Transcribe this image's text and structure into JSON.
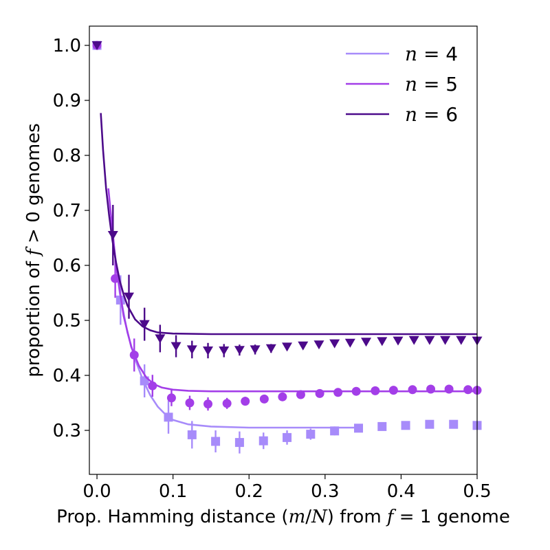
{
  "chart_data": {
    "type": "scatter",
    "xlabel": "Prop. Hamming distance (m/N) from f = 1 genome",
    "ylabel": "proportion of f > 0 genomes",
    "xlim": [
      -0.01,
      0.5
    ],
    "ylim": [
      0.22,
      1.035
    ],
    "xticks": [
      "0.0",
      "0.1",
      "0.2",
      "0.3",
      "0.4",
      "0.5"
    ],
    "yticks": [
      "0.3",
      "0.4",
      "0.5",
      "0.6",
      "0.7",
      "0.8",
      "0.9",
      "1.0"
    ],
    "legend_position": "top-right",
    "series": [
      {
        "name": "n = 4",
        "color": "#a78bfa",
        "marker": "square",
        "points": [
          [
            0,
            1.0
          ],
          [
            0.031,
            0.537
          ],
          [
            0.0625,
            0.39
          ],
          [
            0.094,
            0.324
          ],
          [
            0.125,
            0.292
          ],
          [
            0.156,
            0.28
          ],
          [
            0.1875,
            0.278
          ],
          [
            0.219,
            0.281
          ],
          [
            0.25,
            0.287
          ],
          [
            0.281,
            0.293
          ],
          [
            0.3125,
            0.299
          ],
          [
            0.344,
            0.304
          ],
          [
            0.375,
            0.307
          ],
          [
            0.406,
            0.309
          ],
          [
            0.4375,
            0.311
          ],
          [
            0.469,
            0.311
          ],
          [
            0.5,
            0.309
          ]
        ],
        "errors": [
          0,
          0.045,
          0.03,
          0.03,
          0.025,
          0.02,
          0.02,
          0.015,
          0.013,
          0.01,
          0.008,
          0.006,
          0.005,
          0.004,
          0.004,
          0.004,
          0.004
        ],
        "fit": [
          [
            0.02,
            0.66
          ],
          [
            0.03,
            0.55
          ],
          [
            0.04,
            0.478
          ],
          [
            0.05,
            0.43
          ],
          [
            0.06,
            0.393
          ],
          [
            0.07,
            0.364
          ],
          [
            0.08,
            0.343
          ],
          [
            0.09,
            0.329
          ],
          [
            0.1,
            0.319
          ],
          [
            0.12,
            0.311
          ],
          [
            0.15,
            0.307
          ],
          [
            0.2,
            0.305
          ],
          [
            0.25,
            0.305
          ],
          [
            0.344,
            0.305
          ]
        ]
      },
      {
        "name": "n = 5",
        "color": "#a33ee8",
        "marker": "circle",
        "points": [
          [
            0,
            1.0
          ],
          [
            0.024,
            0.576
          ],
          [
            0.049,
            0.437
          ],
          [
            0.073,
            0.381
          ],
          [
            0.098,
            0.359
          ],
          [
            0.122,
            0.35
          ],
          [
            0.146,
            0.348
          ],
          [
            0.171,
            0.349
          ],
          [
            0.195,
            0.353
          ],
          [
            0.22,
            0.357
          ],
          [
            0.244,
            0.361
          ],
          [
            0.268,
            0.365
          ],
          [
            0.293,
            0.367
          ],
          [
            0.317,
            0.369
          ],
          [
            0.341,
            0.371
          ],
          [
            0.366,
            0.372
          ],
          [
            0.39,
            0.373
          ],
          [
            0.415,
            0.374
          ],
          [
            0.439,
            0.375
          ],
          [
            0.463,
            0.375
          ],
          [
            0.488,
            0.374
          ],
          [
            0.5,
            0.373
          ]
        ],
        "errors": [
          0,
          0.035,
          0.03,
          0.02,
          0.015,
          0.013,
          0.012,
          0.01,
          0.008,
          0.007,
          0.006,
          0.005,
          0.004,
          0.003,
          0.003,
          0.003,
          0.003,
          0.003,
          0.003,
          0.003,
          0.003,
          0.003
        ],
        "fit": [
          [
            0.015,
            0.74
          ],
          [
            0.025,
            0.6
          ],
          [
            0.035,
            0.508
          ],
          [
            0.045,
            0.452
          ],
          [
            0.055,
            0.418
          ],
          [
            0.065,
            0.396
          ],
          [
            0.075,
            0.384
          ],
          [
            0.085,
            0.378
          ],
          [
            0.1,
            0.374
          ],
          [
            0.12,
            0.372
          ],
          [
            0.15,
            0.371
          ],
          [
            0.2,
            0.371
          ],
          [
            0.3,
            0.371
          ],
          [
            0.4,
            0.371
          ],
          [
            0.5,
            0.371
          ]
        ]
      },
      {
        "name": "n = 6",
        "color": "#4c0a8a",
        "marker": "triangle-down",
        "points": [
          [
            0,
            1.0
          ],
          [
            0.021,
            0.655
          ],
          [
            0.042,
            0.543
          ],
          [
            0.0625,
            0.493
          ],
          [
            0.083,
            0.467
          ],
          [
            0.104,
            0.453
          ],
          [
            0.125,
            0.447
          ],
          [
            0.146,
            0.445
          ],
          [
            0.167,
            0.445
          ],
          [
            0.1875,
            0.446
          ],
          [
            0.208,
            0.447
          ],
          [
            0.229,
            0.449
          ],
          [
            0.25,
            0.452
          ],
          [
            0.271,
            0.454
          ],
          [
            0.292,
            0.456
          ],
          [
            0.3125,
            0.458
          ],
          [
            0.333,
            0.459
          ],
          [
            0.354,
            0.461
          ],
          [
            0.375,
            0.462
          ],
          [
            0.396,
            0.463
          ],
          [
            0.417,
            0.464
          ],
          [
            0.4375,
            0.464
          ],
          [
            0.458,
            0.464
          ],
          [
            0.479,
            0.464
          ],
          [
            0.5,
            0.463
          ]
        ],
        "errors": [
          0,
          0.055,
          0.04,
          0.03,
          0.025,
          0.02,
          0.016,
          0.014,
          0.012,
          0.01,
          0.009,
          0.008,
          0.006,
          0.005,
          0.004,
          0.004,
          0.003,
          0.003,
          0.003,
          0.003,
          0.003,
          0.003,
          0.003,
          0.003,
          0.003
        ],
        "fit": [
          [
            0.005,
            0.877
          ],
          [
            0.008,
            0.81
          ],
          [
            0.012,
            0.74
          ],
          [
            0.016,
            0.69
          ],
          [
            0.02,
            0.648
          ],
          [
            0.025,
            0.606
          ],
          [
            0.03,
            0.572
          ],
          [
            0.035,
            0.547
          ],
          [
            0.04,
            0.527
          ],
          [
            0.05,
            0.502
          ],
          [
            0.06,
            0.489
          ],
          [
            0.07,
            0.482
          ],
          [
            0.08,
            0.478
          ],
          [
            0.1,
            0.476
          ],
          [
            0.15,
            0.475
          ],
          [
            0.25,
            0.475
          ],
          [
            0.35,
            0.475
          ],
          [
            0.5,
            0.475
          ]
        ]
      }
    ]
  }
}
